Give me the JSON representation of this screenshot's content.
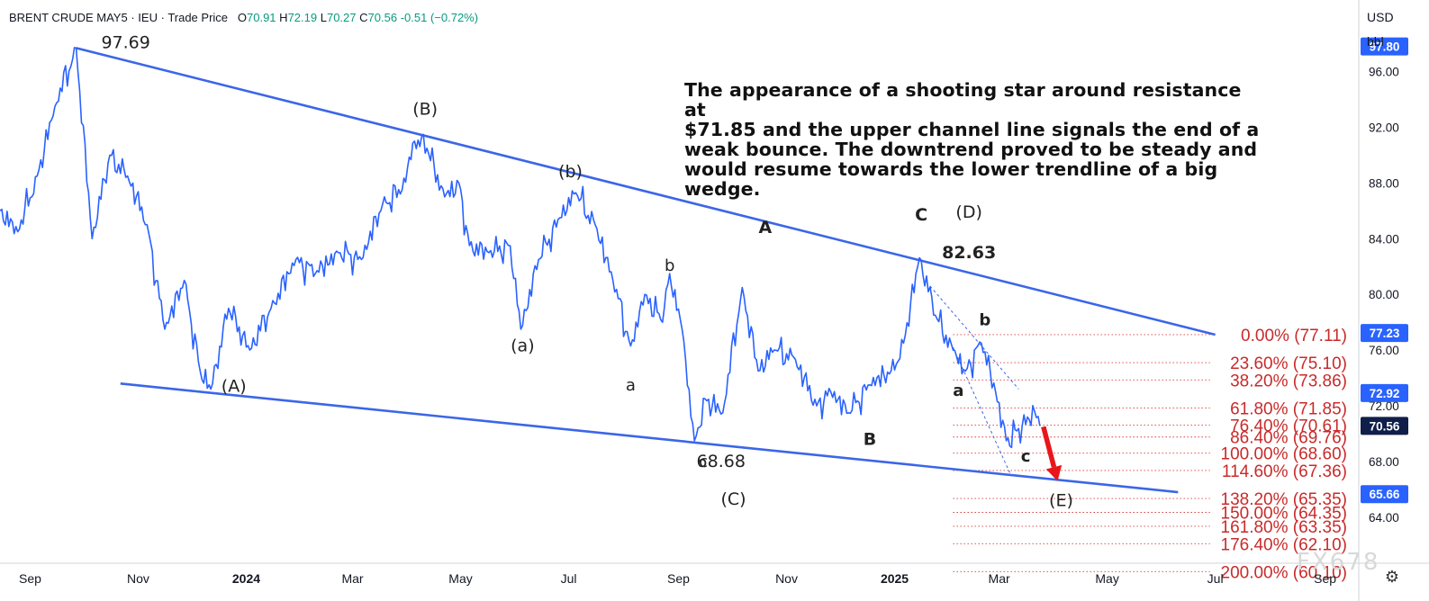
{
  "header": {
    "symbol": "BRENT CRUDE MAY5",
    "exchange": "IEU",
    "price_type": "Trade Price",
    "open_label": "O",
    "open": "70.91",
    "high_label": "H",
    "high": "72.19",
    "low_label": "L",
    "low": "70.27",
    "close_label": "C",
    "close": "70.56",
    "change": "-0.51 (−0.72%)"
  },
  "units": {
    "currency": "USD",
    "unit": "bbl"
  },
  "note": "The appearance of a shooting star around resistance at $71.85 and the upper channel line signals the steady end of a weak bounce.",
  "note_lines": [
    "The appearance of a shooting star around resistance at",
    "$71.85 and the upper channel line signals the end of a",
    "weak bounce.  The downtrend proved to be steady and",
    "would resume towards the lower trendline of a big wedge."
  ],
  "watermark": "FX678",
  "settings_icon": "gear-icon",
  "chart_data": {
    "type": "line",
    "x_range": [
      "2023-08-15",
      "2025-09-20"
    ],
    "ylim": [
      60.7,
      99.2
    ],
    "y_ticks": [
      "96.00",
      "92.00",
      "88.00",
      "84.00",
      "80.00",
      "76.00",
      "72.00",
      "68.00",
      "64.00"
    ],
    "x_ticks": [
      {
        "date": "2023-09-01",
        "label": "Sep",
        "bold": false
      },
      {
        "date": "2023-11-01",
        "label": "Nov",
        "bold": false
      },
      {
        "date": "2024-01-01",
        "label": "2024",
        "bold": true
      },
      {
        "date": "2024-03-01",
        "label": "Mar",
        "bold": false
      },
      {
        "date": "2024-05-01",
        "label": "May",
        "bold": false
      },
      {
        "date": "2024-07-01",
        "label": "Jul",
        "bold": false
      },
      {
        "date": "2024-09-01",
        "label": "Sep",
        "bold": false
      },
      {
        "date": "2024-11-01",
        "label": "Nov",
        "bold": false
      },
      {
        "date": "2025-01-01",
        "label": "2025",
        "bold": true
      },
      {
        "date": "2025-03-01",
        "label": "Mar",
        "bold": false
      },
      {
        "date": "2025-05-01",
        "label": "May",
        "bold": false
      },
      {
        "date": "2025-07-01",
        "label": "Jul",
        "bold": false
      },
      {
        "date": "2025-09-01",
        "label": "Sep",
        "bold": false
      }
    ],
    "price_series": {
      "name": "",
      "color": "#2962ff",
      "points": [
        [
          "2023-08-15",
          86.0
        ],
        [
          "2023-08-25",
          84.5
        ],
        [
          "2023-09-05",
          88.5
        ],
        [
          "2023-09-15",
          93.5
        ],
        [
          "2023-09-27",
          97.69
        ],
        [
          "2023-10-06",
          84.0
        ],
        [
          "2023-10-16",
          90.0
        ],
        [
          "2023-10-26",
          88.5
        ],
        [
          "2023-11-06",
          85.0
        ],
        [
          "2023-11-16",
          77.5
        ],
        [
          "2023-11-27",
          81.0
        ],
        [
          "2023-12-06",
          74.5
        ],
        [
          "2023-12-12",
          73.2
        ],
        [
          "2023-12-22",
          79.0
        ],
        [
          "2024-01-03",
          76.0
        ],
        [
          "2024-01-15",
          79.0
        ],
        [
          "2024-01-29",
          82.5
        ],
        [
          "2024-02-09",
          81.5
        ],
        [
          "2024-02-22",
          83.0
        ],
        [
          "2024-03-06",
          82.5
        ],
        [
          "2024-03-18",
          86.5
        ],
        [
          "2024-03-29",
          87.5
        ],
        [
          "2024-04-05",
          91.0
        ],
        [
          "2024-04-12",
          90.5
        ],
        [
          "2024-04-22",
          87.0
        ],
        [
          "2024-04-30",
          88.0
        ],
        [
          "2024-05-06",
          83.5
        ],
        [
          "2024-05-17",
          83.0
        ],
        [
          "2024-05-29",
          83.5
        ],
        [
          "2024-06-04",
          77.5
        ],
        [
          "2024-06-14",
          82.5
        ],
        [
          "2024-06-26",
          85.5
        ],
        [
          "2024-07-05",
          87.3
        ],
        [
          "2024-07-16",
          85.0
        ],
        [
          "2024-07-26",
          81.0
        ],
        [
          "2024-08-05",
          76.3
        ],
        [
          "2024-08-13",
          80.0
        ],
        [
          "2024-08-23",
          78.0
        ],
        [
          "2024-08-27",
          81.5
        ],
        [
          "2024-09-03",
          77.5
        ],
        [
          "2024-09-10",
          69.5
        ],
        [
          "2024-09-16",
          72.5
        ],
        [
          "2024-09-26",
          71.5
        ],
        [
          "2024-10-07",
          80.5
        ],
        [
          "2024-10-16",
          74.5
        ],
        [
          "2024-10-25",
          76.0
        ],
        [
          "2024-11-05",
          75.5
        ],
        [
          "2024-11-18",
          72.0
        ],
        [
          "2024-11-26",
          73.0
        ],
        [
          "2024-12-06",
          71.5
        ],
        [
          "2024-12-18",
          73.5
        ],
        [
          "2024-12-30",
          74.5
        ],
        [
          "2025-01-06",
          76.5
        ],
        [
          "2025-01-15",
          82.63
        ],
        [
          "2025-01-24",
          78.5
        ],
        [
          "2025-02-03",
          76.0
        ],
        [
          "2025-02-10",
          74.5
        ],
        [
          "2025-02-19",
          76.5
        ],
        [
          "2025-02-27",
          73.0
        ],
        [
          "2025-03-05",
          69.5
        ],
        [
          "2025-03-11",
          70.2
        ],
        [
          "2025-03-18",
          71.0
        ],
        [
          "2025-03-21",
          71.6
        ],
        [
          "2025-03-24",
          70.56
        ]
      ]
    },
    "trendlines": [
      {
        "from": [
          "2023-09-27",
          97.69
        ],
        "to": [
          "2025-07-01",
          77.11
        ],
        "color": "#3b66e8"
      },
      {
        "from": [
          "2023-10-22",
          73.6
        ],
        "to": [
          "2025-06-10",
          65.8
        ],
        "color": "#3b66e8"
      }
    ],
    "channel_lines": [
      {
        "from": [
          "2025-01-21",
          80.6
        ],
        "to": [
          "2025-03-12",
          73.2
        ],
        "color": "#3b66e8"
      },
      {
        "from": [
          "2025-02-03",
          76.2
        ],
        "to": [
          "2025-03-07",
          67.2
        ],
        "color": "#3b66e8"
      }
    ],
    "wave_labels": [
      {
        "date": "2023-10-25",
        "price": 97.69,
        "text": "97.69",
        "bold": false,
        "size": 19
      },
      {
        "date": "2024-04-11",
        "price": 92.9,
        "text": "(B)",
        "bold": false,
        "size": 19
      },
      {
        "date": "2024-07-02",
        "price": 88.4,
        "text": "(b)",
        "bold": false,
        "size": 19
      },
      {
        "date": "2023-12-25",
        "price": 73.0,
        "text": "(A)",
        "bold": false,
        "size": 19
      },
      {
        "date": "2024-06-05",
        "price": 75.9,
        "text": "(a)",
        "bold": false,
        "size": 19
      },
      {
        "date": "2024-08-27",
        "price": 81.7,
        "text": "b",
        "bold": false,
        "size": 18
      },
      {
        "date": "2024-08-05",
        "price": 73.1,
        "text": "a",
        "bold": false,
        "size": 18
      },
      {
        "date": "2024-09-15",
        "price": 67.6,
        "text": "c",
        "bold": false,
        "size": 18
      },
      {
        "date": "2024-09-25",
        "price": 67.6,
        "text": "68.68",
        "bold": false,
        "size": 19
      },
      {
        "date": "2024-10-02",
        "price": 64.9,
        "text": "(C)",
        "bold": false,
        "size": 19
      },
      {
        "date": "2024-10-20",
        "price": 84.4,
        "text": "A",
        "bold": true,
        "size": 19
      },
      {
        "date": "2024-12-18",
        "price": 69.2,
        "text": "B",
        "bold": true,
        "size": 19
      },
      {
        "date": "2025-01-16",
        "price": 85.3,
        "text": "C",
        "bold": true,
        "size": 19
      },
      {
        "date": "2025-02-12",
        "price": 85.5,
        "text": "(D)",
        "bold": false,
        "size": 19
      },
      {
        "date": "2025-02-12",
        "price": 82.6,
        "text": "82.63",
        "bold": true,
        "size": 19
      },
      {
        "date": "2025-02-21",
        "price": 77.8,
        "text": "b",
        "bold": true,
        "size": 18
      },
      {
        "date": "2025-02-06",
        "price": 72.7,
        "text": "a",
        "bold": true,
        "size": 18
      },
      {
        "date": "2025-03-16",
        "price": 68.0,
        "text": "c",
        "bold": true,
        "size": 18
      },
      {
        "date": "2025-04-05",
        "price": 64.8,
        "text": "(E)",
        "bold": false,
        "size": 19
      }
    ],
    "target_arrow": {
      "from": [
        "2025-03-26",
        70.5
      ],
      "to": [
        "2025-04-03",
        66.6
      ],
      "color": "#e8161b"
    },
    "fibonacci": {
      "start": "2025-02-03",
      "end": "2025-06-28",
      "color": "#d93b3b",
      "levels": [
        {
          "ratio": "0.00%",
          "price": 77.11
        },
        {
          "ratio": "23.60%",
          "price": 75.1
        },
        {
          "ratio": "38.20%",
          "price": 73.86
        },
        {
          "ratio": "61.80%",
          "price": 71.85
        },
        {
          "ratio": "76.40%",
          "price": 70.61
        },
        {
          "ratio": "86.40%",
          "price": 69.76
        },
        {
          "ratio": "100.00%",
          "price": 68.6
        },
        {
          "ratio": "114.60%",
          "price": 67.36
        },
        {
          "ratio": "138.20%",
          "price": 65.35
        },
        {
          "ratio": "150.00%",
          "price": 64.35
        },
        {
          "ratio": "161.80%",
          "price": 63.35
        },
        {
          "ratio": "176.40%",
          "price": 62.1
        },
        {
          "ratio": "200.00%",
          "price": 60.1
        }
      ]
    },
    "price_badges": [
      {
        "price": 97.8,
        "text": "97.80",
        "color": "#2962ff"
      },
      {
        "price": 77.23,
        "text": "77.23",
        "color": "#2962ff"
      },
      {
        "price": 72.92,
        "text": "72.92",
        "color": "#2962ff"
      },
      {
        "price": 70.56,
        "text": "70.56",
        "color": "#0f1f4a"
      },
      {
        "price": 65.66,
        "text": "65.66",
        "color": "#2962ff"
      }
    ]
  }
}
